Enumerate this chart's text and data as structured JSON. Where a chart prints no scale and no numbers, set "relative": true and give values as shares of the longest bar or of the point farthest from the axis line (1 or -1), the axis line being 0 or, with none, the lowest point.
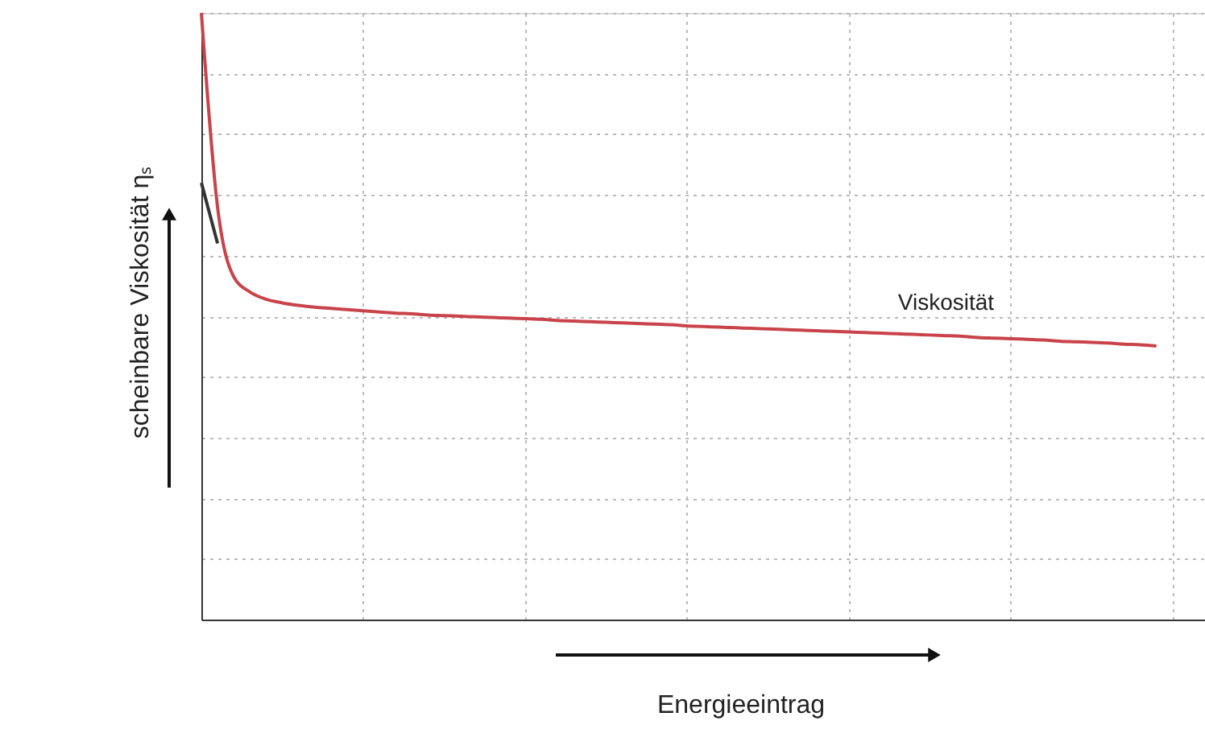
{
  "chart_data": {
    "type": "line",
    "relative": true,
    "xlabel": "Energieeintrag",
    "ylabel": "scheinbare Viskosität ηₛ",
    "grid": true,
    "legend": false,
    "marker": "none",
    "line_style": "solid",
    "categories": [
      null,
      null,
      null,
      null,
      null,
      null,
      null,
      null,
      null,
      null,
      null,
      null,
      null,
      null,
      null,
      null,
      null,
      null,
      null,
      null,
      null,
      null,
      null,
      null,
      null,
      null,
      null,
      null,
      null,
      null,
      null,
      null,
      null,
      null,
      null,
      null,
      null,
      null,
      null,
      null,
      null,
      null,
      null,
      null,
      null,
      null,
      null,
      null,
      null,
      null,
      null,
      null,
      null,
      null,
      null,
      null,
      null,
      null,
      null,
      null,
      null,
      null,
      null
    ],
    "series": [
      {
        "name": "Viskosität",
        "color": "#c8434a",
        "values": [
          1.0,
          0.68,
          0.565,
          0.54,
          0.528,
          0.522,
          0.518,
          0.515,
          0.513,
          0.511,
          0.509,
          0.507,
          0.505,
          0.504,
          0.502,
          0.501,
          0.5,
          0.499,
          0.498,
          0.497,
          0.496,
          0.495,
          0.493,
          0.492,
          0.491,
          0.49,
          0.489,
          0.488,
          0.487,
          0.486,
          0.484,
          0.483,
          0.482,
          0.481,
          0.48,
          0.479,
          0.478,
          0.477,
          0.476,
          0.475,
          0.474,
          0.473,
          0.472,
          0.471,
          0.47,
          0.469,
          0.468,
          0.467,
          0.465,
          0.464,
          0.463,
          0.462,
          0.461,
          0.459,
          0.458,
          0.457,
          0.456,
          0.454,
          0.453,
          0.451,
          null,
          null,
          null
        ]
      },
      {
        "color": "#333333",
        "values": [
          0.72,
          0.62,
          null,
          null,
          null,
          null,
          null,
          null,
          null,
          null,
          null,
          null,
          null,
          null,
          null,
          null,
          null,
          null,
          null,
          null,
          null,
          null,
          null,
          null,
          null,
          null,
          null,
          null,
          null,
          null,
          null,
          null,
          null,
          null,
          null,
          null,
          null,
          null,
          null,
          null,
          null,
          null,
          null,
          null,
          null,
          null,
          null,
          null,
          null,
          null,
          null,
          null,
          null,
          null,
          null,
          null,
          null,
          null,
          null,
          null,
          null,
          null,
          null
        ]
      }
    ]
  }
}
